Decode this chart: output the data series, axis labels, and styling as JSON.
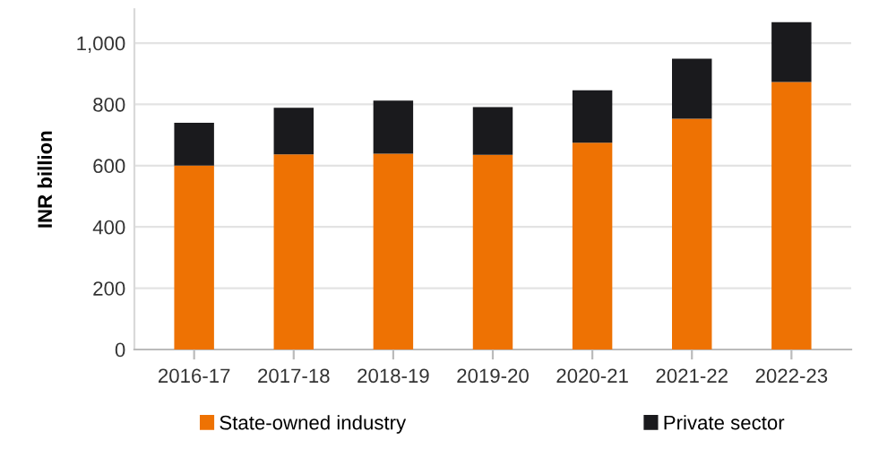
{
  "chart_data": {
    "type": "bar",
    "stacked": true,
    "ylabel": "INR billion",
    "categories": [
      "2016-17",
      "2017-18",
      "2018-19",
      "2019-20",
      "2020-21",
      "2021-22",
      "2022-23"
    ],
    "series": [
      {
        "name": "State-owned industry",
        "color": "#ee7203",
        "values": [
          600,
          637,
          639,
          635,
          675,
          753,
          873
        ]
      },
      {
        "name": "Private sector",
        "color": "#1a1a1d",
        "values": [
          140,
          152,
          173,
          156,
          171,
          196,
          195
        ]
      }
    ],
    "ylim": [
      0,
      1110
    ],
    "yticks": [
      0,
      200,
      400,
      600,
      800,
      {
        "value": 1000,
        "label": "1,000"
      }
    ],
    "grid": "y",
    "legend": "bottom"
  }
}
